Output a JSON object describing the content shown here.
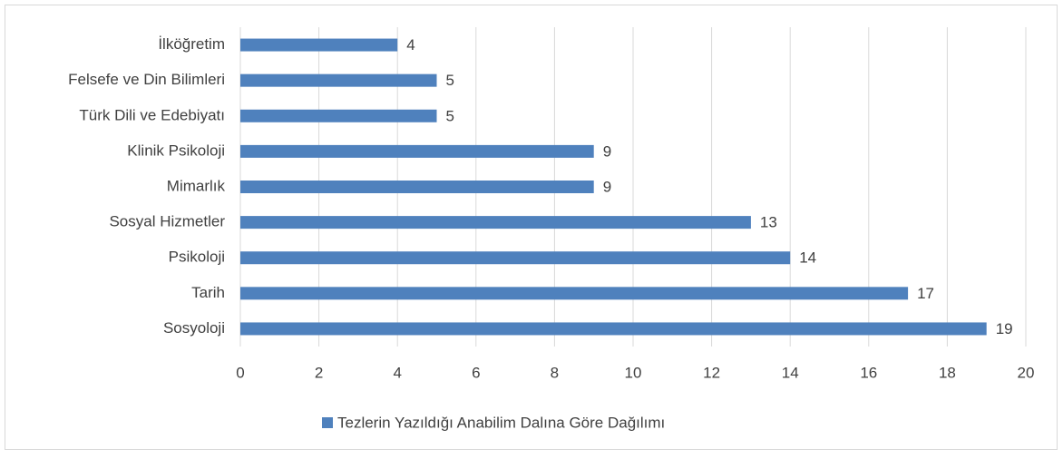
{
  "chart_data": {
    "type": "bar",
    "orientation": "horizontal",
    "categories": [
      "İlköğretim",
      "Felsefe ve Din Bilimleri",
      "Türk Dili ve Edebiyatı",
      "Klinik Psikoloji",
      "Mimarlık",
      "Sosyal Hizmetler",
      "Psikoloji",
      "Tarih",
      "Sosyoloji"
    ],
    "series": [
      {
        "name": "Tezlerin Yazıldığı Anabilim Dalına Göre Dağılımı",
        "color": "#4f81bd",
        "values": [
          4,
          5,
          5,
          9,
          9,
          13,
          14,
          17,
          19
        ]
      }
    ],
    "xlim": [
      0,
      20
    ],
    "xticks": [
      0,
      2,
      4,
      6,
      8,
      10,
      12,
      14,
      16,
      18,
      20
    ],
    "grid": true,
    "legend": "bottom"
  }
}
